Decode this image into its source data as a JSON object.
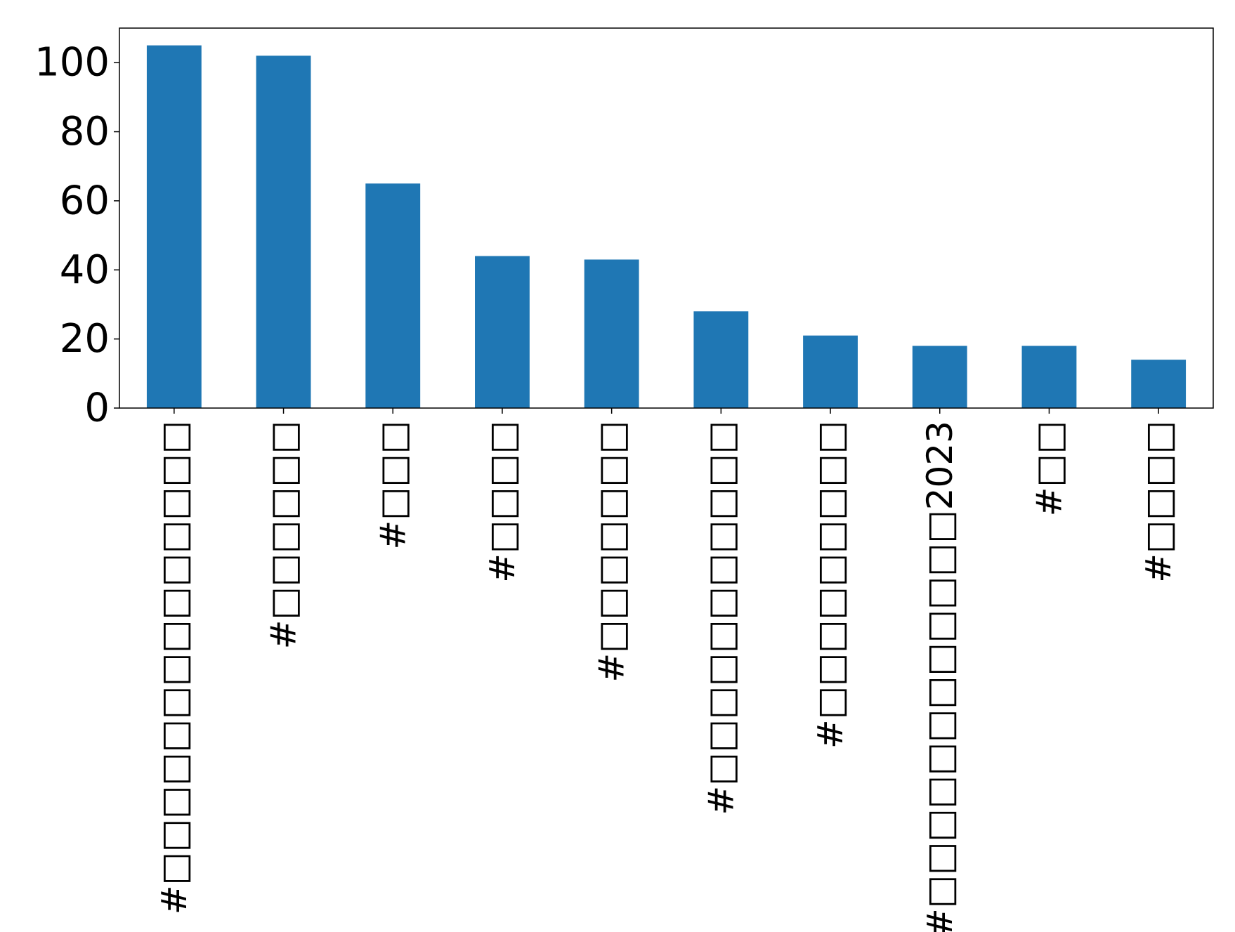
{
  "chart_data": {
    "type": "bar",
    "title": "",
    "xlabel": "",
    "ylabel": "",
    "categories": [
      "#□□□□□□□□□□□□□□",
      "#□□□□□□",
      "#□□□",
      "#□□□□",
      "#□□□□□□□",
      "#□□□□□□□□□□□",
      "#□□□□□□□□□",
      "#□□□□□□□□□□□□2023",
      "#□□",
      "#□□□□"
    ],
    "values": [
      105,
      102,
      65,
      44,
      43,
      28,
      21,
      18,
      18,
      14
    ],
    "ylim": [
      0,
      110
    ],
    "yticks": [
      "0",
      "20",
      "40",
      "60",
      "80",
      "100"
    ],
    "grid": false,
    "legend": "none",
    "bar_color": "#1f77b4"
  }
}
